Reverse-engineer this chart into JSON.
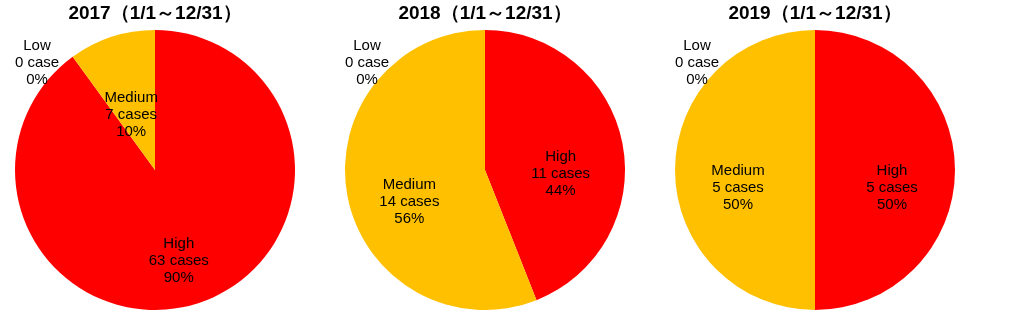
{
  "chart_data": [
    {
      "type": "pie",
      "title": "2017（1/1～12/31）",
      "categories": [
        "High",
        "Medium",
        "Low"
      ],
      "values": [
        63,
        7,
        0
      ],
      "colors": [
        "#ff0000",
        "#ffc000",
        "#92d050"
      ],
      "value_labels": [
        "63 cases\n90%",
        "7 cases\n10%",
        "0 case\n0%"
      ]
    },
    {
      "type": "pie",
      "title": "2018（1/1～12/31）",
      "categories": [
        "High",
        "Medium",
        "Low"
      ],
      "values": [
        11,
        14,
        0
      ],
      "colors": [
        "#ff0000",
        "#ffc000",
        "#92d050"
      ],
      "value_labels": [
        "11 cases\n44%",
        "14 cases\n56%",
        "0 case\n0%"
      ]
    },
    {
      "type": "pie",
      "title": "2019（1/1～12/31）",
      "categories": [
        "High",
        "Medium",
        "Low"
      ],
      "values": [
        5,
        5,
        0
      ],
      "colors": [
        "#ff0000",
        "#ffc000",
        "#92d050"
      ],
      "value_labels": [
        "5 cases\n50%",
        "5 cases\n50%",
        "0 case\n0%"
      ]
    }
  ]
}
